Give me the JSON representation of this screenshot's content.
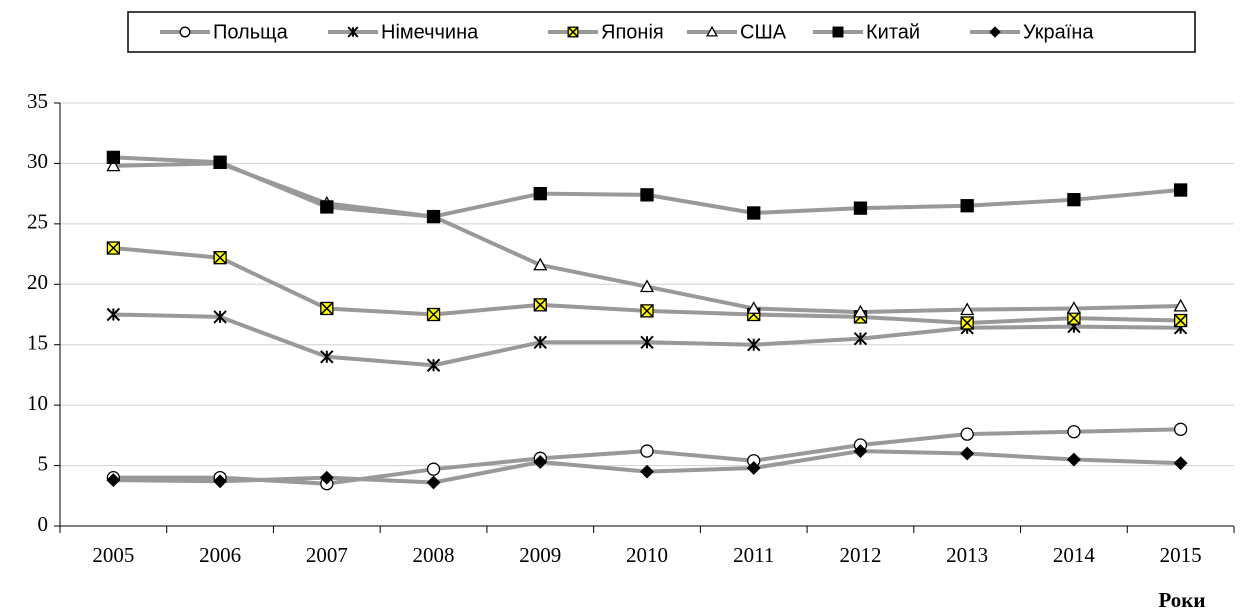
{
  "chart_data": {
    "type": "line",
    "x_label": "Роки",
    "categories": [
      "2005",
      "2006",
      "2007",
      "2008",
      "2009",
      "2010",
      "2011",
      "2012",
      "2013",
      "2014",
      "2015"
    ],
    "series": [
      {
        "name": "Польща",
        "color": "#999999",
        "marker": "circle",
        "marker_fill": "#ffffff",
        "values": [
          4.0,
          4.0,
          3.5,
          4.7,
          5.6,
          6.2,
          5.4,
          6.7,
          7.6,
          7.8,
          8.0
        ]
      },
      {
        "name": "Німеччина",
        "color": "#999999",
        "marker": "asterisk",
        "marker_fill": "#000000",
        "values": [
          17.5,
          17.3,
          14.0,
          13.3,
          15.2,
          15.2,
          15.0,
          15.5,
          16.4,
          16.5,
          16.4
        ]
      },
      {
        "name": "Японія",
        "color": "#999999",
        "marker": "xsquare",
        "marker_fill": "#ffff00",
        "values": [
          23.0,
          22.2,
          18.0,
          17.5,
          18.3,
          17.8,
          17.5,
          17.3,
          16.8,
          17.2,
          17.0
        ]
      },
      {
        "name": "США",
        "color": "#999999",
        "marker": "triangle",
        "marker_fill": "#ffffff",
        "values": [
          29.8,
          30.0,
          26.7,
          25.6,
          21.6,
          19.8,
          18.0,
          17.7,
          17.9,
          18.0,
          18.2
        ]
      },
      {
        "name": "Китай",
        "color": "#999999",
        "marker": "square",
        "marker_fill": "#000000",
        "values": [
          30.5,
          30.1,
          26.4,
          25.6,
          27.5,
          27.4,
          25.9,
          26.3,
          26.5,
          27.0,
          27.8
        ]
      },
      {
        "name": "Україна",
        "color": "#999999",
        "marker": "diamond",
        "marker_fill": "#000000",
        "values": [
          3.8,
          3.7,
          4.0,
          3.6,
          5.3,
          4.5,
          4.8,
          6.2,
          6.0,
          5.5,
          5.2
        ]
      }
    ],
    "ylim": [
      0,
      35
    ],
    "yticks": [
      0,
      5,
      10,
      15,
      20,
      25,
      30,
      35
    ],
    "grid": true,
    "legend": "top"
  }
}
